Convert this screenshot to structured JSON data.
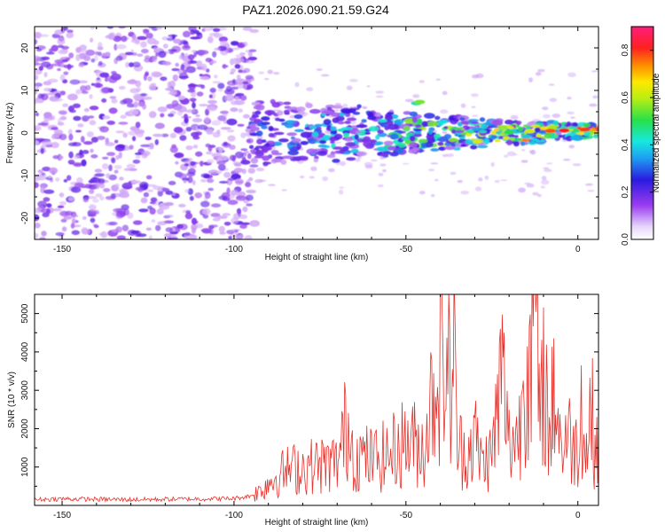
{
  "figure": {
    "title": "PAZ1.2026.090.21.59.G24"
  },
  "colors": {
    "background": "#ffffff",
    "axis": "#000000",
    "snr_line": "#e8302a",
    "spectro_purple": "#6a10d8",
    "spectro_light": "#d9b8f5"
  },
  "chart_data": [
    {
      "id": "spectrogram",
      "type": "heatmap",
      "title": "",
      "xlabel": "Height of straight line (km)",
      "ylabel": "Frequency (Hz)",
      "xlim": [
        -158,
        6
      ],
      "ylim": [
        -25,
        25
      ],
      "xticks": [
        -150,
        -100,
        -50,
        0
      ],
      "xtick_labels": [
        "-150",
        "-100",
        "-50",
        "0"
      ],
      "yticks": [
        -20,
        -10,
        0,
        10,
        20
      ],
      "ytick_labels": [
        "-20",
        "-10",
        "0",
        "10",
        "20"
      ],
      "colorbar": {
        "label": "Normalized spectral amplitude",
        "range": [
          0.0,
          0.9
        ],
        "ticks": [
          0.0,
          0.2,
          0.4,
          0.6,
          0.8
        ],
        "tick_labels": [
          "0.0",
          "0.2",
          "0.4",
          "0.6",
          "0.8"
        ],
        "colormap": "purple-blue-cyan-green-yellow-red-magenta"
      },
      "regions": [
        {
          "x_range": [
            -158,
            -95
          ],
          "description": "diffuse noise",
          "freq_spread": [
            -25,
            25
          ],
          "amplitude": 0.05
        },
        {
          "x_range": [
            -95,
            -50
          ],
          "description": "signal band",
          "freq_center": 0,
          "freq_spread": [
            -5,
            5
          ],
          "amplitude": 0.25
        },
        {
          "x_range": [
            -50,
            6
          ],
          "description": "narrowing signal",
          "freq_center": 0,
          "freq_spread": [
            -3,
            3
          ],
          "amplitude": 0.6
        }
      ]
    },
    {
      "id": "snr",
      "type": "line",
      "title": "",
      "xlabel": "Height of straight line (km)",
      "ylabel": "SNR (10 * v/v)",
      "xlim": [
        -158,
        6
      ],
      "ylim": [
        0,
        5500
      ],
      "xticks": [
        -150,
        -100,
        -50,
        0
      ],
      "xtick_labels": [
        "-150",
        "-100",
        "-50",
        "0"
      ],
      "yticks": [
        1000,
        2000,
        3000,
        4000,
        5000
      ],
      "ytick_labels": [
        "1000",
        "2000",
        "3000",
        "4000",
        "5000"
      ],
      "series": [
        {
          "name": "SNR",
          "x": [
            -158,
            -150,
            -140,
            -130,
            -120,
            -110,
            -100,
            -95,
            -92,
            -90,
            -85,
            -80,
            -75,
            -70,
            -67,
            -65,
            -60,
            -55,
            -50,
            -45,
            -40,
            -37,
            -36,
            -35,
            -32,
            -30,
            -28,
            -25,
            -22,
            -20,
            -17,
            -15,
            -13,
            -12,
            -11,
            -10,
            -8,
            -7,
            -6,
            -5,
            -3,
            -1,
            0,
            1,
            2,
            3,
            4,
            5,
            6
          ],
          "values": [
            150,
            170,
            160,
            150,
            160,
            170,
            180,
            250,
            400,
            600,
            900,
            1000,
            1050,
            1100,
            2200,
            1300,
            1200,
            1300,
            1700,
            1500,
            4000,
            3200,
            3900,
            1500,
            1400,
            1800,
            1100,
            1300,
            3500,
            1600,
            1900,
            4200,
            4600,
            5400,
            1400,
            3700,
            1500,
            3400,
            2500,
            1600,
            1800,
            1600,
            1400,
            3100,
            1100,
            1900,
            2500,
            1400,
            2100
          ]
        }
      ]
    }
  ]
}
